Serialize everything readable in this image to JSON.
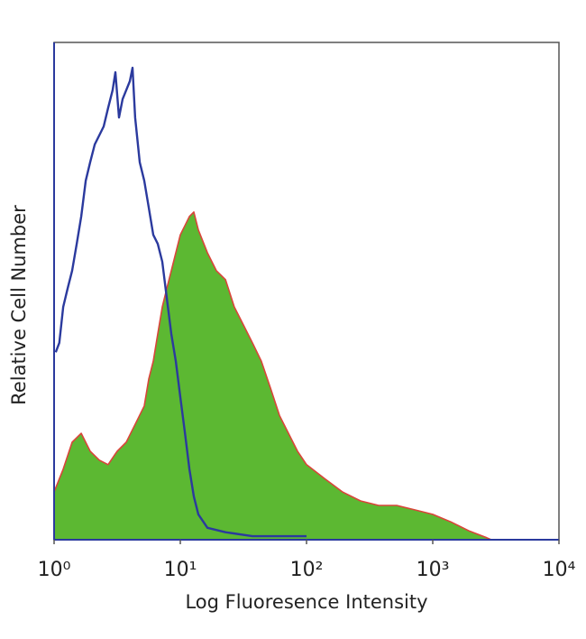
{
  "chart_data": {
    "type": "histogram-line",
    "x_label": "Log Fluoresence Intensity",
    "y_label": "Relative Cell Number",
    "log_x": true,
    "xlim": [
      1,
      10000
    ],
    "xticks": [
      {
        "value": 1,
        "label": "10⁰"
      },
      {
        "value": 10,
        "label": "10¹"
      },
      {
        "value": 100,
        "label": "10²"
      },
      {
        "value": 1000,
        "label": "10³"
      },
      {
        "value": 10000,
        "label": "10⁴"
      }
    ],
    "ylim": [
      0,
      100
    ],
    "series": [
      {
        "color": "#5cb832",
        "outline": "#d9453a",
        "filled": true,
        "x": [
          1,
          1.18,
          1.39,
          1.64,
          1.93,
          2.28,
          2.68,
          3.16,
          3.73,
          4.39,
          5.18,
          5.62,
          6.11,
          6.63,
          7.2,
          7.81,
          8.48,
          9.21,
          10,
          10.9,
          11.8,
          12.8,
          13.9,
          16.4,
          19.3,
          22.8,
          26.8,
          31.6,
          37.3,
          43.9,
          51.8,
          61.1,
          72,
          84.8,
          100,
          139,
          193,
          268,
          373,
          518,
          720,
          1000,
          1390,
          1930,
          2680,
          2910
        ],
        "values": [
          9.6,
          14.2,
          19.6,
          21.4,
          17.8,
          16,
          15.1,
          17.8,
          19.6,
          23.2,
          26.9,
          32.3,
          35.9,
          41.4,
          46.8,
          50.5,
          54.1,
          57.7,
          61.3,
          63.2,
          65,
          65.9,
          62.3,
          57.7,
          54.1,
          52.3,
          46.8,
          43.2,
          39.6,
          35.9,
          30.5,
          25,
          21.4,
          17.8,
          15.1,
          12.3,
          9.6,
          7.8,
          6.9,
          6.9,
          6,
          5.1,
          3.6,
          1.8,
          0.4,
          0
        ]
      },
      {
        "color": "#2b3a9e",
        "filled": false,
        "x": [
          1.03,
          1.1,
          1.18,
          1.28,
          1.39,
          1.51,
          1.64,
          1.78,
          1.93,
          2.1,
          2.28,
          2.47,
          2.68,
          2.91,
          3.06,
          3.27,
          3.49,
          3.73,
          3.98,
          4.18,
          4.39,
          4.77,
          5.18,
          5.62,
          6.11,
          6.63,
          7.2,
          7.81,
          8.48,
          9.21,
          10,
          10.9,
          11.8,
          12.8,
          13.9,
          16.4,
          22.8,
          37.3,
          100
        ],
        "values": [
          37.7,
          39.6,
          46.8,
          50.5,
          54.1,
          59.5,
          65,
          72.2,
          75.9,
          79.5,
          81.3,
          83.1,
          86.8,
          90.4,
          94,
          84.9,
          88.6,
          90.4,
          92.2,
          94.9,
          84.9,
          75.9,
          72.2,
          66.8,
          61.3,
          59.5,
          55.9,
          48.6,
          41.4,
          35.9,
          28.7,
          21.4,
          14.2,
          8.7,
          5.1,
          2.4,
          1.5,
          0.7,
          0.7
        ]
      }
    ]
  }
}
